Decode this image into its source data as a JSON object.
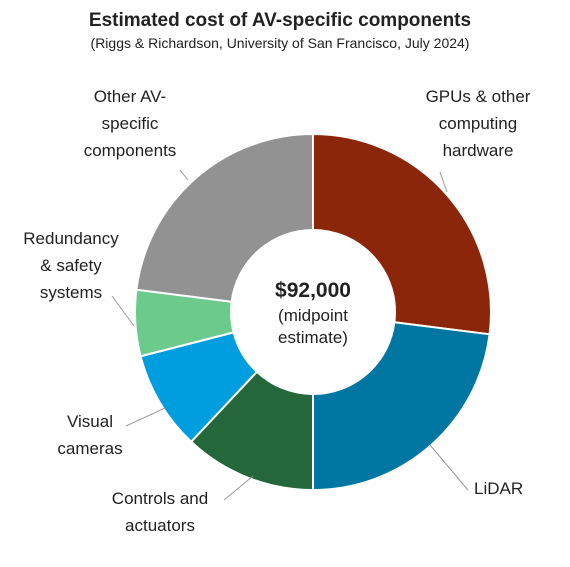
{
  "chart_data": {
    "type": "pie",
    "title": "Estimated cost of AV-specific components",
    "subtitle": "(Riggs & Richardson, University of San Francisco, July 2024)",
    "center_value": "$92,000",
    "center_note": [
      "(midpoint",
      "estimate)"
    ],
    "slices": [
      {
        "label": [
          "GPUs & other",
          "computing",
          "hardware"
        ],
        "value": 27,
        "color": "#8b260a"
      },
      {
        "label": [
          "LiDAR"
        ],
        "value": 23,
        "color": "#0076a3"
      },
      {
        "label": [
          "Controls and",
          "actuators"
        ],
        "value": 12,
        "color": "#23673a"
      },
      {
        "label": [
          "Visual",
          "cameras"
        ],
        "value": 9,
        "color": "#009ede"
      },
      {
        "label": [
          "Redundancy",
          "& safety",
          "systems"
        ],
        "value": 6,
        "color": "#6ccb8c"
      },
      {
        "label": [
          "Other AV-",
          "specific",
          "components"
        ],
        "value": 23,
        "color": "#929292"
      }
    ]
  }
}
